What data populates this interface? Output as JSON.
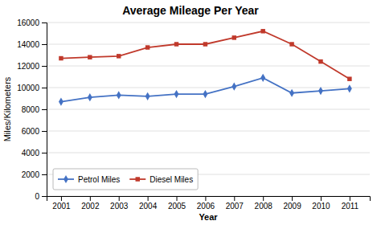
{
  "chart_data": {
    "type": "line",
    "title": "Average Mileage Per Year",
    "xlabel": "Year",
    "ylabel": "Miles/Kilometers",
    "x": [
      2001,
      2002,
      2003,
      2004,
      2005,
      2006,
      2007,
      2008,
      2009,
      2010,
      2011
    ],
    "series": [
      {
        "name": "Petrol Miles",
        "color": "#4472C4",
        "marker": "diamond",
        "values": [
          8700,
          9100,
          9300,
          9200,
          9400,
          9400,
          10100,
          10900,
          9500,
          9700,
          9900
        ]
      },
      {
        "name": "Diesel Miles",
        "color": "#C0392B",
        "marker": "square",
        "values": [
          12700,
          12800,
          12900,
          13700,
          14000,
          14000,
          14600,
          15200,
          14000,
          12400,
          10800
        ]
      }
    ],
    "xlim": [
      2000.5,
      2011.7
    ],
    "xticks": [
      2001,
      2002,
      2003,
      2004,
      2005,
      2006,
      2007,
      2008,
      2009,
      2010,
      2011
    ],
    "ylim": [
      0,
      16000
    ],
    "yticks": [
      0,
      2000,
      4000,
      6000,
      8000,
      10000,
      12000,
      14000,
      16000
    ],
    "grid": true,
    "legend": "lower left"
  }
}
